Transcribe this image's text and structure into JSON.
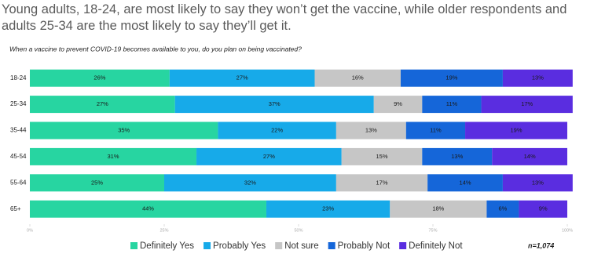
{
  "chart_data": {
    "type": "stacked-bar-horizontal",
    "title": "Young adults, 18-24, are most likely to say they won’t get the vaccine, while older respondents and adults 25-34 are the most likely to say they’ll get it.",
    "subtitle": "When a vaccine to prevent COVID-19 becomes available to you, do you plan on being vaccinated?",
    "annotation": "n=1,074",
    "categories": [
      "18-24",
      "25-34",
      "35-44",
      "45-54",
      "55-64",
      "65+"
    ],
    "series": [
      {
        "name": "Definitely Yes",
        "color": "#27d5a1",
        "values": [
          26,
          27,
          35,
          31,
          25,
          44
        ],
        "value_labels": [
          "26%",
          "27%",
          "35%",
          "31%",
          "25%",
          "44%"
        ]
      },
      {
        "name": "Probably Yes",
        "color": "#17aae9",
        "values": [
          27,
          37,
          22,
          27,
          32,
          23
        ],
        "value_labels": [
          "27%",
          "37%",
          "22%",
          "27%",
          "32%",
          "23%"
        ]
      },
      {
        "name": "Not sure",
        "color": "#c6c6c6",
        "values": [
          16,
          9,
          13,
          15,
          17,
          18
        ],
        "value_labels": [
          "16%",
          "9%",
          "13%",
          "15%",
          "17%",
          "18%"
        ]
      },
      {
        "name": "Probably Not",
        "color": "#1566d9",
        "values": [
          19,
          11,
          11,
          13,
          14,
          6
        ],
        "value_labels": [
          "19%",
          "11%",
          "11%",
          "13%",
          "14%",
          "6%"
        ]
      },
      {
        "name": "Definitely Not",
        "color": "#5a2de0",
        "values": [
          13,
          17,
          19,
          14,
          13,
          9
        ],
        "value_labels": [
          "13%",
          "17%",
          "19%",
          "14%",
          "13%",
          "9%"
        ]
      }
    ],
    "xlim": [
      0,
      100
    ],
    "xticks": [
      {
        "value": 0,
        "label": "0%"
      },
      {
        "value": 25,
        "label": "25%"
      },
      {
        "value": 50,
        "label": "50%"
      },
      {
        "value": 75,
        "label": "75%"
      },
      {
        "value": 100,
        "label": "100%"
      }
    ],
    "legend": "bottom"
  }
}
